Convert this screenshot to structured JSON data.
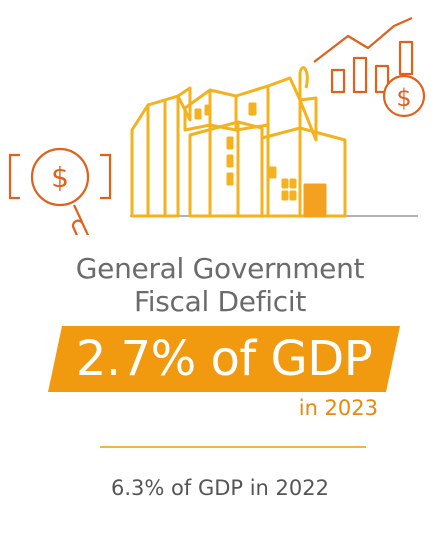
{
  "illustration": {
    "icons": [
      "magnifier-dollar-icon",
      "government-building-icon",
      "rising-chart-dollar-icon"
    ],
    "dollar_symbol": "$",
    "colors": {
      "building": "#f4b21f",
      "accent": "#e0611c",
      "ground": "#999999"
    }
  },
  "headline": {
    "line1": "General Government",
    "line2": "Fiscal Deficit"
  },
  "figure": {
    "value_text": "2.7% of GDP",
    "year_text": "in 2023",
    "banner_color": "#f19a10"
  },
  "comparison": {
    "text": "6.3% of GDP in 2022"
  }
}
